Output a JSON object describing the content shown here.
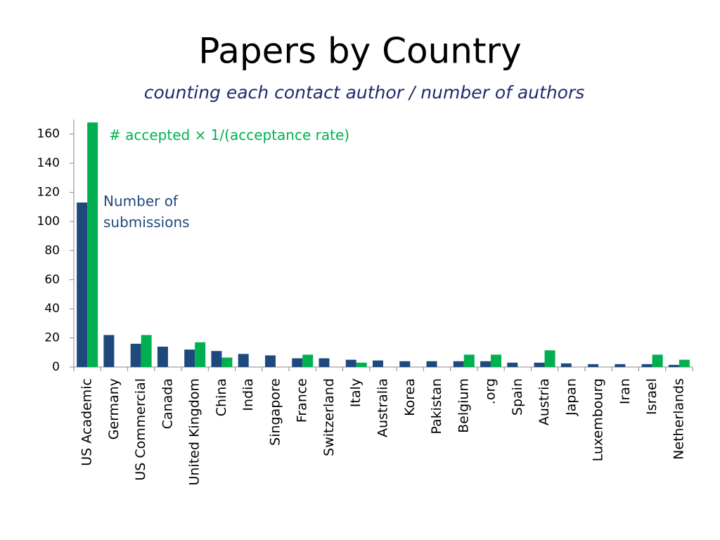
{
  "chart_data": {
    "type": "bar",
    "title": "Papers by Country",
    "subtitle": "counting each contact author / number of authors",
    "categories": [
      "US Academic",
      "Germany",
      "US Commercial",
      "Canada",
      "United Kingdom",
      "China",
      "India",
      "Singapore",
      "France",
      "Switzerland",
      "Italy",
      "Australia",
      "Korea",
      "Pakistan",
      "Belgium",
      ".org",
      "Spain",
      "Austria",
      "Japan",
      "Luxembourg",
      "Iran",
      "Israel",
      "Netherlands"
    ],
    "series": [
      {
        "name": "Number of submissions",
        "color": "#1f497d",
        "values": [
          113,
          22,
          16,
          14,
          12,
          11,
          9,
          8,
          6,
          6,
          5,
          4.5,
          4,
          4,
          4,
          4,
          3,
          3,
          2.5,
          2,
          2,
          2,
          1.5
        ]
      },
      {
        "name": "# accepted × 1/(acceptance rate)",
        "color": "#00b050",
        "values": [
          168,
          null,
          22,
          null,
          17,
          6.5,
          null,
          null,
          8.5,
          null,
          3,
          null,
          null,
          null,
          8.5,
          8.5,
          null,
          11.5,
          null,
          null,
          null,
          8.5,
          5
        ]
      }
    ],
    "ylim": [
      0,
      170
    ],
    "yticks": [
      0,
      20,
      40,
      60,
      80,
      100,
      120,
      140,
      160
    ],
    "grid": false
  }
}
